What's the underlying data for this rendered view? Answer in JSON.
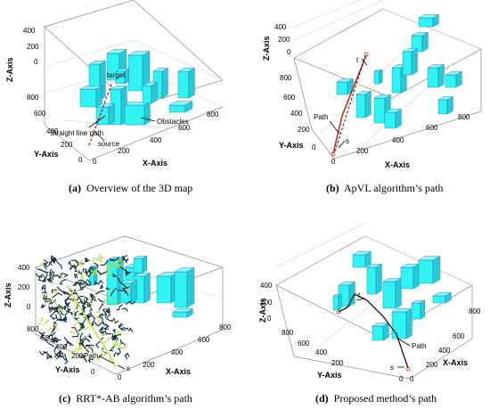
{
  "chart_data": [
    {
      "type": "scatter",
      "panel_label": "(a)",
      "caption": "Overview of the 3D map",
      "xlabel": "X-Axis",
      "ylabel": "Y-Axis",
      "zlabel": "Z-Axis",
      "x_ticks": [
        "0",
        "200",
        "400",
        "600",
        "800"
      ],
      "y_ticks": [
        "0",
        "200",
        "400",
        "600",
        "800"
      ],
      "z_ticks": [
        "0",
        "200",
        "400"
      ],
      "annotations": [
        "Straight line path",
        "source",
        "target",
        "Obstacles"
      ]
    },
    {
      "type": "scatter",
      "panel_label": "(b)",
      "caption": "ApVL algorithm’s path",
      "xlabel": "X-Axis",
      "ylabel": "Y-Axis",
      "zlabel": "Z-Axis",
      "x_ticks": [
        "0",
        "200",
        "400",
        "600",
        "800"
      ],
      "y_ticks": [
        "0",
        "200",
        "400",
        "600",
        "800"
      ],
      "z_ticks": [
        "0",
        "200",
        "400"
      ],
      "annotations": [
        "Path",
        "s",
        "t"
      ]
    },
    {
      "type": "scatter",
      "panel_label": "(c)",
      "caption": "RRT*-AB algorithm’s path",
      "xlabel": "X-Axis",
      "ylabel": "Y-Axis",
      "zlabel": "Z-Axis",
      "x_ticks": [
        "0",
        "200",
        "400",
        "600",
        "800"
      ],
      "y_ticks": [
        "0",
        "200",
        "400",
        "600",
        "800"
      ],
      "z_ticks": [
        "0",
        "200",
        "400"
      ],
      "annotations": [
        "Path",
        "s"
      ]
    },
    {
      "type": "scatter",
      "panel_label": "(d)",
      "caption": "Proposed method’s path",
      "xlabel": "X-Axis",
      "ylabel": "Y-Axis",
      "zlabel": "Z-Axis",
      "x_ticks": [
        "0",
        "200",
        "400",
        "600",
        "800"
      ],
      "y_ticks": [
        "0",
        "200",
        "400",
        "600",
        "800"
      ],
      "z_ticks": [
        "0",
        "200",
        "400"
      ],
      "annotations": [
        "Path",
        "s",
        "t"
      ]
    }
  ],
  "colors": {
    "obstacle": "#33f2f2",
    "obstacle_top": "#7ffcfc",
    "obstacle_edge": "#1b6fa8",
    "path_b": "#cc2a1a",
    "path_d": "#111111",
    "tree_dark": "#0d2a3a",
    "tree_light": "#b8e04a"
  }
}
